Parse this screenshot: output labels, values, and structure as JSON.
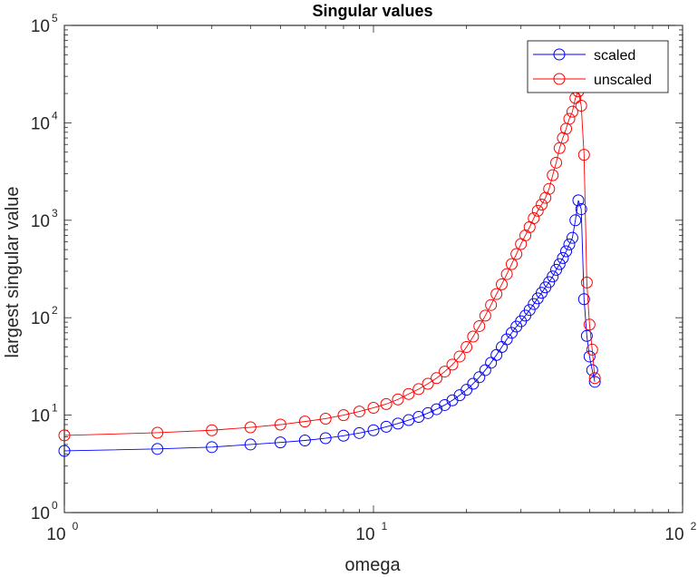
{
  "chart_data": {
    "type": "line",
    "title": "Singular values",
    "xlabel": "omega",
    "ylabel": "largest singular value",
    "xscale": "log",
    "yscale": "log",
    "xlim": [
      1,
      100
    ],
    "ylim": [
      1,
      100000
    ],
    "x_ticks": [
      {
        "value": 1,
        "base": "10",
        "exp": "0"
      },
      {
        "value": 10,
        "base": "10",
        "exp": "1"
      },
      {
        "value": 100,
        "base": "10",
        "exp": "2"
      }
    ],
    "y_ticks": [
      {
        "value": 1,
        "base": "10",
        "exp": "0"
      },
      {
        "value": 10,
        "base": "10",
        "exp": "1"
      },
      {
        "value": 100,
        "base": "10",
        "exp": "2"
      },
      {
        "value": 1000,
        "base": "10",
        "exp": "3"
      },
      {
        "value": 10000,
        "base": "10",
        "exp": "4"
      },
      {
        "value": 100000,
        "base": "10",
        "exp": "5"
      }
    ],
    "legend_position": "top-right",
    "grid": false,
    "series": [
      {
        "name": "scaled",
        "color": "#0000ff",
        "marker": "circle",
        "points": [
          [
            1,
            4.3
          ],
          [
            2,
            4.5
          ],
          [
            3,
            4.7
          ],
          [
            4,
            5.0
          ],
          [
            5,
            5.25
          ],
          [
            6,
            5.5
          ],
          [
            7,
            5.8
          ],
          [
            8,
            6.15
          ],
          [
            9,
            6.55
          ],
          [
            10,
            7.0
          ],
          [
            11,
            7.6
          ],
          [
            12,
            8.2
          ],
          [
            13,
            8.9
          ],
          [
            14,
            9.6
          ],
          [
            15,
            10.5
          ],
          [
            16,
            11.5
          ],
          [
            17,
            12.7
          ],
          [
            18,
            14.2
          ],
          [
            19,
            16.0
          ],
          [
            20,
            18.2
          ],
          [
            21,
            21.0
          ],
          [
            22,
            24.5
          ],
          [
            23,
            29.0
          ],
          [
            24,
            34.5
          ],
          [
            25,
            41.5
          ],
          [
            26,
            50.0
          ],
          [
            27,
            60.0
          ],
          [
            28,
            70.0
          ],
          [
            29,
            81.0
          ],
          [
            30,
            92.0
          ],
          [
            31,
            105
          ],
          [
            32,
            120
          ],
          [
            33,
            138
          ],
          [
            34,
            158
          ],
          [
            35,
            180
          ],
          [
            36,
            205
          ],
          [
            37,
            232
          ],
          [
            38,
            265
          ],
          [
            39,
            310
          ],
          [
            40,
            355
          ],
          [
            41,
            410
          ],
          [
            42,
            480
          ],
          [
            43,
            565
          ],
          [
            44,
            660
          ],
          [
            45,
            1000
          ],
          [
            46,
            1600
          ],
          [
            47,
            1300
          ],
          [
            48,
            155
          ],
          [
            49,
            65
          ],
          [
            50,
            40
          ],
          [
            51,
            29
          ],
          [
            52,
            22
          ]
        ]
      },
      {
        "name": "unscaled",
        "color": "#ff0000",
        "marker": "circle",
        "points": [
          [
            1,
            6.2
          ],
          [
            2,
            6.6
          ],
          [
            3,
            7.0
          ],
          [
            4,
            7.5
          ],
          [
            5,
            8.0
          ],
          [
            6,
            8.6
          ],
          [
            7,
            9.2
          ],
          [
            8,
            10.0
          ],
          [
            9,
            10.9
          ],
          [
            10,
            11.9
          ],
          [
            11,
            13.0
          ],
          [
            12,
            14.5
          ],
          [
            13,
            16.5
          ],
          [
            14,
            18.5
          ],
          [
            15,
            21.0
          ],
          [
            16,
            24.0
          ],
          [
            17,
            28.0
          ],
          [
            18,
            33.0
          ],
          [
            19,
            40.0
          ],
          [
            20,
            50.0
          ],
          [
            21,
            64
          ],
          [
            22,
            82
          ],
          [
            23,
            105
          ],
          [
            24,
            135
          ],
          [
            25,
            175
          ],
          [
            26,
            220
          ],
          [
            27,
            280
          ],
          [
            28,
            355
          ],
          [
            29,
            450
          ],
          [
            30,
            570
          ],
          [
            31,
            700
          ],
          [
            32,
            850
          ],
          [
            33,
            1050
          ],
          [
            34,
            1250
          ],
          [
            35,
            1450
          ],
          [
            36,
            1700
          ],
          [
            37,
            2100
          ],
          [
            38,
            2900
          ],
          [
            39,
            3900
          ],
          [
            40,
            5500
          ],
          [
            41,
            7000
          ],
          [
            42,
            8700
          ],
          [
            43,
            11000
          ],
          [
            44,
            13000
          ],
          [
            45,
            18000
          ],
          [
            46,
            21000
          ],
          [
            47,
            15000
          ],
          [
            48,
            4700
          ],
          [
            49,
            230
          ],
          [
            50,
            85
          ],
          [
            51,
            47
          ],
          [
            52,
            24
          ]
        ]
      }
    ]
  }
}
